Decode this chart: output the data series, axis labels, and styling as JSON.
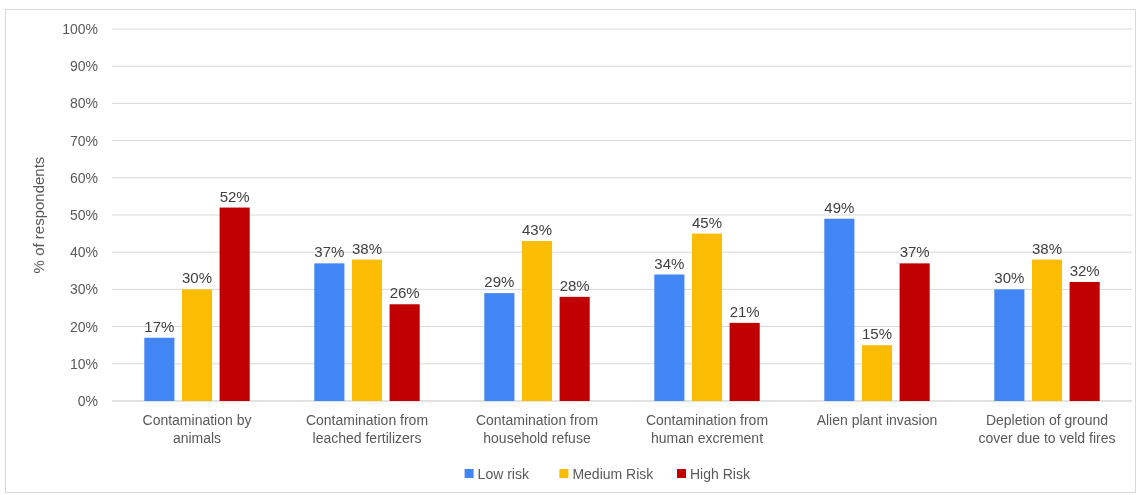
{
  "chart_data": {
    "type": "bar",
    "ylabel": "% of respondents",
    "categories": [
      "Contamination by animals",
      "Contamination from leached fertilizers",
      "Contamination from household refuse",
      "Contamination from human excrement",
      "Alien plant invasion",
      "Depletion of ground cover due to veld fires"
    ],
    "series": [
      {
        "name": "Low risk",
        "color": "#4285f4",
        "values": [
          17,
          37,
          29,
          34,
          49,
          30
        ],
        "value_labels": [
          "17%",
          "37%",
          "29%",
          "34%",
          "49%",
          "30%"
        ]
      },
      {
        "name": "Medium Risk",
        "color": "#fbbc04",
        "values": [
          30,
          38,
          43,
          45,
          15,
          38
        ],
        "value_labels": [
          "30%",
          "38%",
          "43%",
          "45%",
          "15%",
          "38%"
        ]
      },
      {
        "name": "High Risk",
        "color": "#c00000",
        "values": [
          52,
          26,
          28,
          21,
          37,
          32
        ],
        "value_labels": [
          "52%",
          "26%",
          "28%",
          "21%",
          "37%",
          "32%"
        ]
      }
    ],
    "ylim": [
      0,
      100
    ],
    "yticks": [
      {
        "value": 0,
        "label": "0%"
      },
      {
        "value": 10,
        "label": "10%"
      },
      {
        "value": 20,
        "label": "20%"
      },
      {
        "value": 30,
        "label": "30%"
      },
      {
        "value": 40,
        "label": "40%"
      },
      {
        "value": 50,
        "label": "50%"
      },
      {
        "value": 60,
        "label": "60%"
      },
      {
        "value": 70,
        "label": "70%"
      },
      {
        "value": 80,
        "label": "80%"
      },
      {
        "value": 90,
        "label": "90%"
      },
      {
        "value": 100,
        "label": "100%"
      }
    ],
    "grid": "y",
    "legend": "bottom"
  }
}
